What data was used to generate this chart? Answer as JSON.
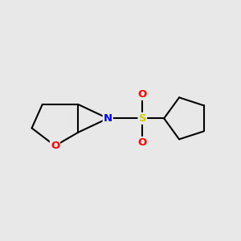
{
  "background_color": "#e8e8e8",
  "line_color": "#000000",
  "line_width": 1.5,
  "atom_colors": {
    "O": "#ff0000",
    "N": "#0000ff",
    "S": "#cccc00"
  },
  "font_size": 9.5,
  "figsize": [
    3.0,
    3.0
  ],
  "dpi": 100,
  "xlim": [
    -2.8,
    2.8
  ],
  "ylim": [
    -1.4,
    1.4
  ]
}
